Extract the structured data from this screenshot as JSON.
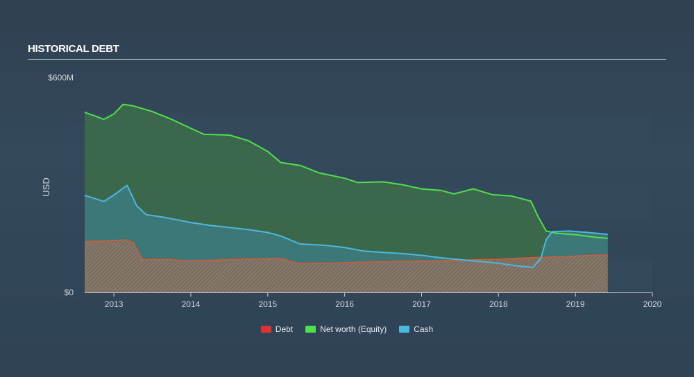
{
  "title": "HISTORICAL DEBT",
  "colors": {
    "debt": "#e0332f",
    "equity": "#4fe04c",
    "cash": "#4db8de",
    "equity_fill": "#3c6a4b",
    "cash_fill": "#3f7c84",
    "debt_fill": "#866b5c",
    "band": "#34495c"
  },
  "chart_data": {
    "type": "area",
    "title": "HISTORICAL DEBT",
    "xlabel": "",
    "ylabel": "USD",
    "xlim": [
      2012.62,
      2020.0
    ],
    "ylim": [
      0,
      600
    ],
    "x_ticks": [
      "2013",
      "2014",
      "2015",
      "2016",
      "2017",
      "2018",
      "2019",
      "2020"
    ],
    "y_tick_labels": [
      {
        "value": 600,
        "label": "$600M"
      },
      {
        "value": 0,
        "label": "$0"
      }
    ],
    "legend": [
      "Debt",
      "Net worth (Equity)",
      "Cash"
    ],
    "series": [
      {
        "name": "Net worth (Equity)",
        "points": [
          [
            2012.62,
            505
          ],
          [
            2012.87,
            485
          ],
          [
            2013.0,
            500
          ],
          [
            2013.12,
            527
          ],
          [
            2013.25,
            523
          ],
          [
            2013.5,
            507
          ],
          [
            2013.75,
            485
          ],
          [
            2014.0,
            460
          ],
          [
            2014.17,
            443
          ],
          [
            2014.5,
            441
          ],
          [
            2014.75,
            425
          ],
          [
            2015.0,
            395
          ],
          [
            2015.17,
            364
          ],
          [
            2015.42,
            356
          ],
          [
            2015.67,
            335
          ],
          [
            2016.0,
            320
          ],
          [
            2016.17,
            308
          ],
          [
            2016.5,
            310
          ],
          [
            2016.75,
            302
          ],
          [
            2017.0,
            290
          ],
          [
            2017.25,
            286
          ],
          [
            2017.42,
            276
          ],
          [
            2017.67,
            290
          ],
          [
            2017.92,
            274
          ],
          [
            2018.17,
            270
          ],
          [
            2018.42,
            256
          ],
          [
            2018.52,
            210
          ],
          [
            2018.62,
            172
          ],
          [
            2018.75,
            166
          ],
          [
            2019.0,
            162
          ],
          [
            2019.25,
            155
          ],
          [
            2019.42,
            152
          ]
        ]
      },
      {
        "name": "Cash",
        "points": [
          [
            2012.62,
            272
          ],
          [
            2012.87,
            255
          ],
          [
            2013.0,
            273
          ],
          [
            2013.17,
            300
          ],
          [
            2013.3,
            242
          ],
          [
            2013.42,
            218
          ],
          [
            2013.67,
            210
          ],
          [
            2014.0,
            196
          ],
          [
            2014.25,
            188
          ],
          [
            2014.5,
            182
          ],
          [
            2014.75,
            176
          ],
          [
            2015.0,
            168
          ],
          [
            2015.17,
            158
          ],
          [
            2015.42,
            136
          ],
          [
            2015.75,
            132
          ],
          [
            2016.0,
            126
          ],
          [
            2016.25,
            116
          ],
          [
            2016.5,
            112
          ],
          [
            2016.75,
            109
          ],
          [
            2017.0,
            104
          ],
          [
            2017.25,
            97
          ],
          [
            2017.5,
            92
          ],
          [
            2017.75,
            87
          ],
          [
            2018.0,
            82
          ],
          [
            2018.25,
            74
          ],
          [
            2018.45,
            70
          ],
          [
            2018.55,
            96
          ],
          [
            2018.62,
            148
          ],
          [
            2018.7,
            170
          ],
          [
            2018.92,
            172
          ],
          [
            2019.17,
            168
          ],
          [
            2019.42,
            163
          ]
        ]
      },
      {
        "name": "Debt",
        "points": [
          [
            2012.62,
            142
          ],
          [
            2012.9,
            145
          ],
          [
            2013.17,
            147
          ],
          [
            2013.25,
            140
          ],
          [
            2013.37,
            92
          ],
          [
            2013.75,
            92
          ],
          [
            2013.92,
            89
          ],
          [
            2014.25,
            90
          ],
          [
            2014.75,
            93
          ],
          [
            2015.0,
            95
          ],
          [
            2015.17,
            95
          ],
          [
            2015.4,
            81
          ],
          [
            2015.75,
            82
          ],
          [
            2016.25,
            85
          ],
          [
            2016.75,
            87
          ],
          [
            2017.25,
            89
          ],
          [
            2017.75,
            92
          ],
          [
            2018.0,
            93
          ],
          [
            2018.25,
            96
          ],
          [
            2018.5,
            98
          ],
          [
            2018.75,
            100
          ],
          [
            2019.0,
            102
          ],
          [
            2019.25,
            104
          ],
          [
            2019.42,
            105
          ]
        ]
      }
    ]
  }
}
